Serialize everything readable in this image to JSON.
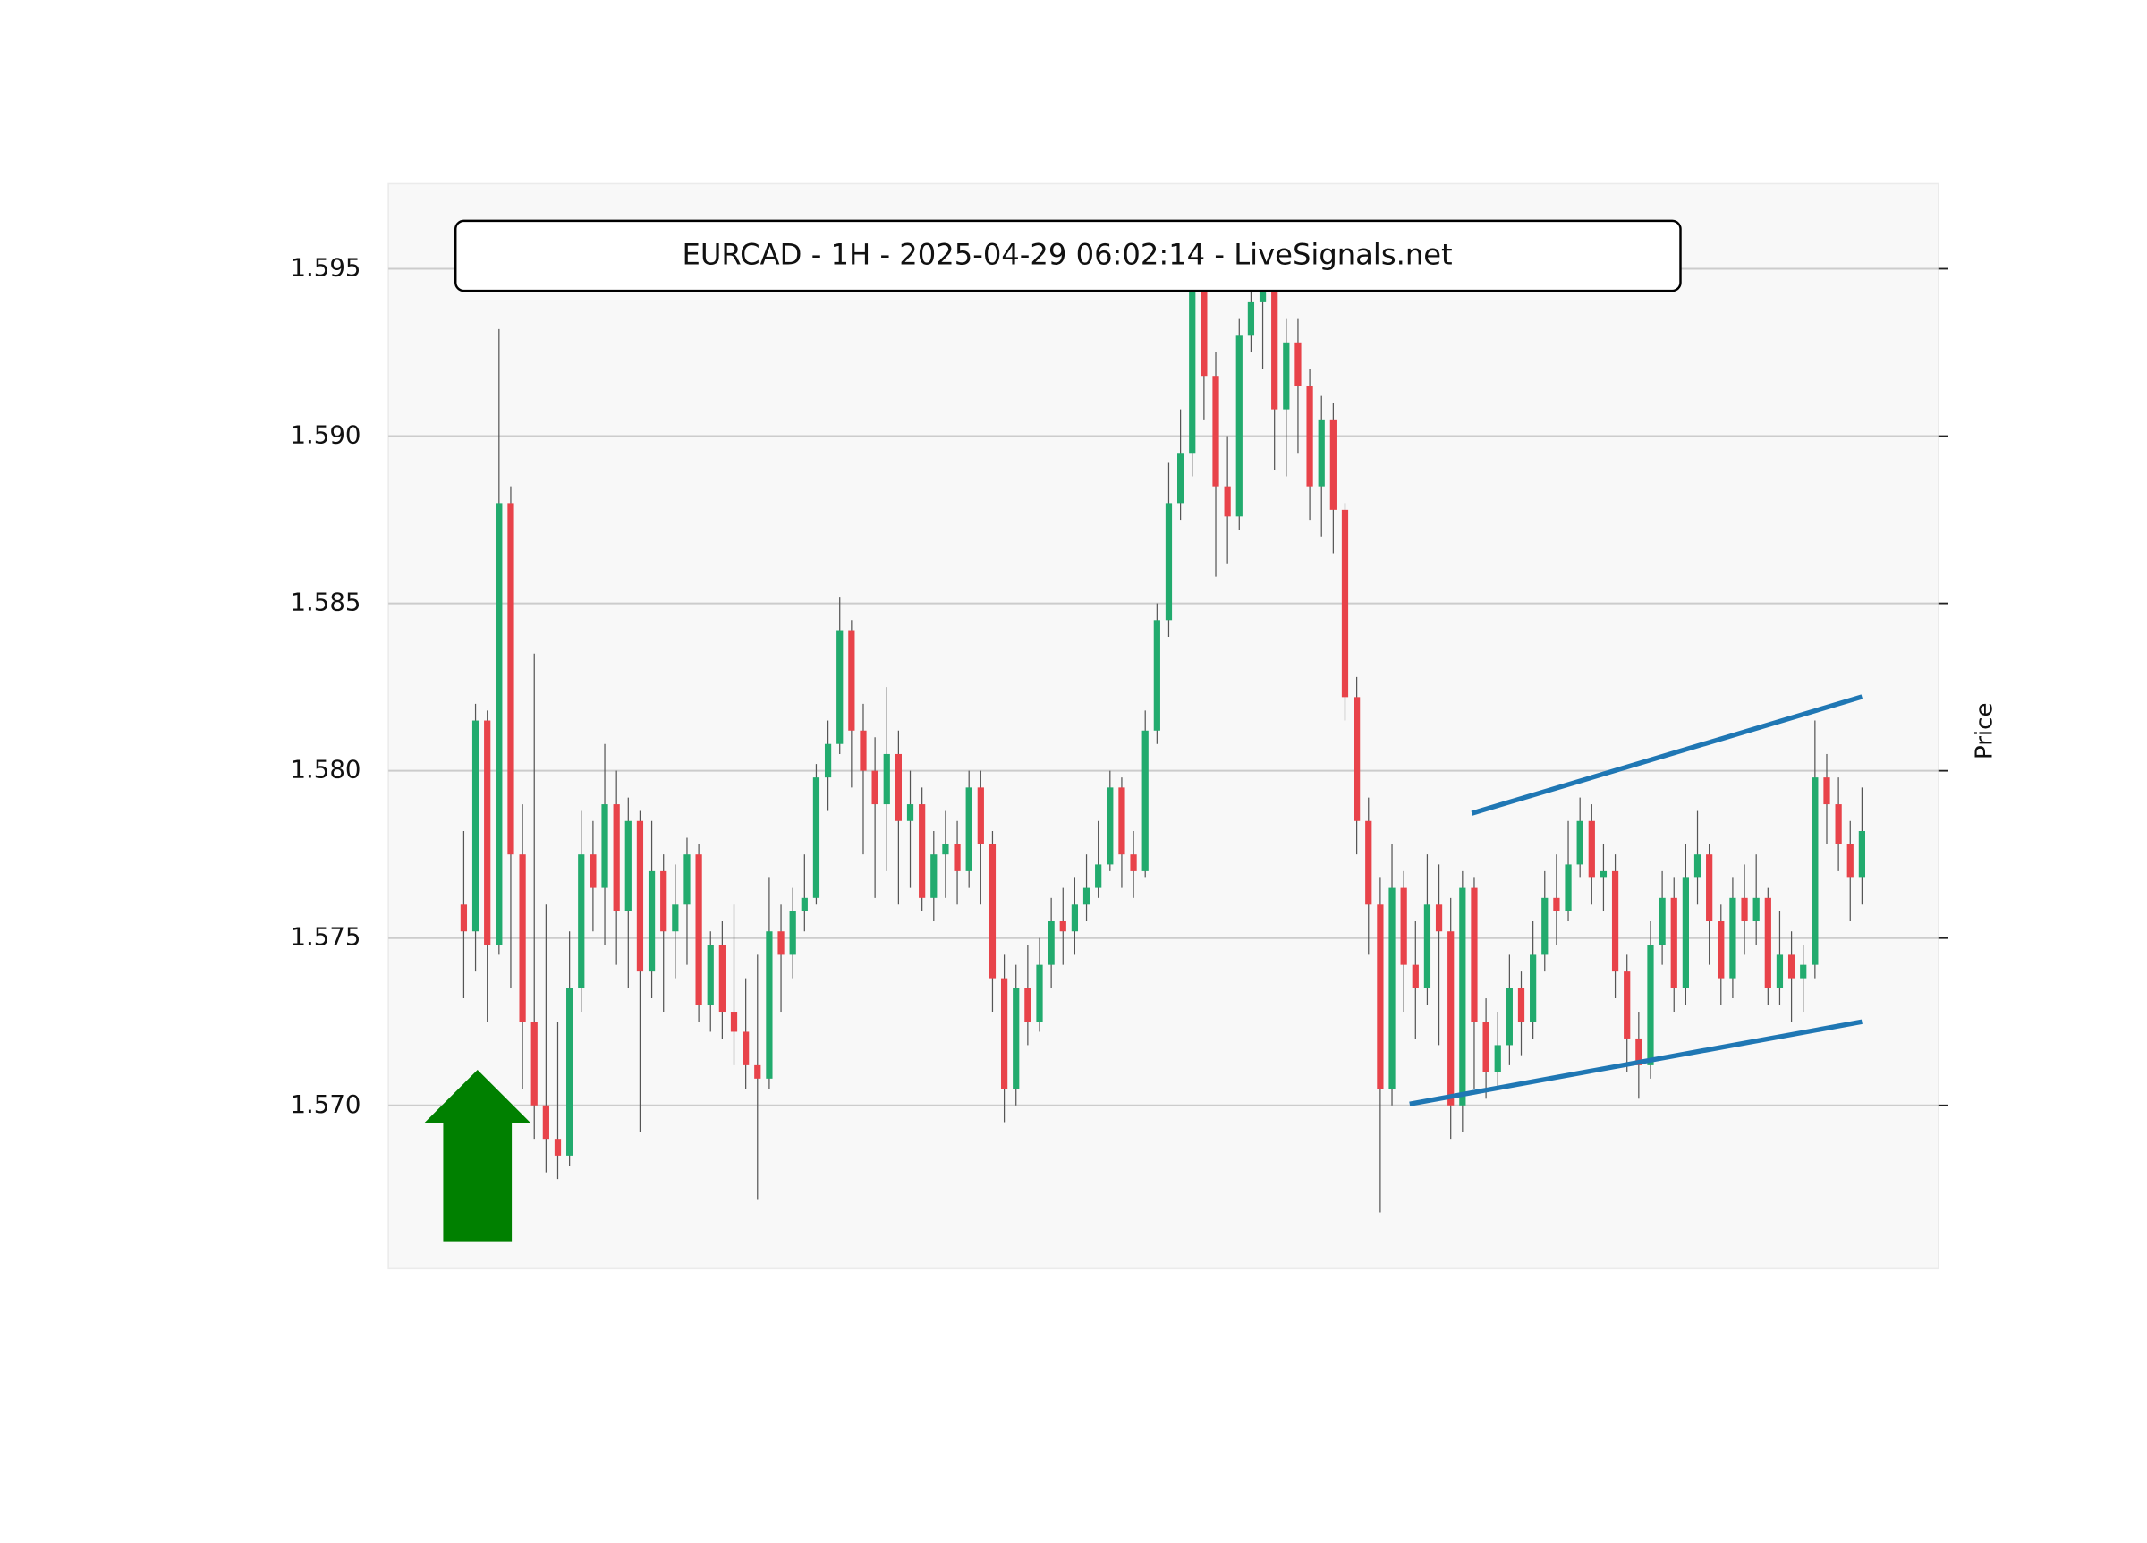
{
  "chart_data": {
    "type": "candlestick",
    "title": "EURCAD - 1H - 2025-04-29 06:02:14 - LiveSignals.net",
    "y_label": "Price",
    "up_color": "#22ab6e",
    "down_color": "#e8434a",
    "wick_color": "#555555",
    "ylim": [
      1.56512,
      1.59754
    ],
    "yticks": [
      {
        "value": 1.57,
        "label": "1.570"
      },
      1.575,
      {
        "value": 1.58,
        "label": "1.580"
      },
      1.585,
      {
        "value": 1.59,
        "label": "1.590"
      },
      1.595
    ],
    "grid": true,
    "xlim": [
      -6.42,
      125.5
    ],
    "open": [
      1.576,
      1.5752,
      1.5815,
      1.5748,
      1.588,
      1.5775,
      1.5725,
      1.57,
      1.569,
      1.5685,
      1.5735,
      1.5775,
      1.5765,
      1.579,
      1.5758,
      1.5785,
      1.574,
      1.577,
      1.5752,
      1.576,
      1.5775,
      1.573,
      1.5748,
      1.5728,
      1.5722,
      1.5712,
      1.5708,
      1.5752,
      1.5745,
      1.5758,
      1.5762,
      1.5798,
      1.5808,
      1.5842,
      1.5812,
      1.58,
      1.579,
      1.5805,
      1.5785,
      1.579,
      1.5762,
      1.5775,
      1.5778,
      1.577,
      1.5795,
      1.5778,
      1.5738,
      1.5705,
      1.5735,
      1.5725,
      1.5742,
      1.5755,
      1.5752,
      1.576,
      1.5765,
      1.5772,
      1.5795,
      1.5775,
      1.577,
      1.5812,
      1.5845,
      1.588,
      1.5895,
      1.5943,
      1.5918,
      1.5885,
      1.5876,
      1.593,
      1.594,
      1.5945,
      1.5908,
      1.5928,
      1.5915,
      1.5885,
      1.5905,
      1.5878,
      1.5822,
      1.5785,
      1.576,
      1.5705,
      1.5765,
      1.5742,
      1.5735,
      1.576,
      1.5752,
      1.57,
      1.5765,
      1.5725,
      1.571,
      1.5718,
      1.5735,
      1.5725,
      1.5745,
      1.5762,
      1.5758,
      1.5772,
      1.5785,
      1.5768,
      1.577,
      1.574,
      1.572,
      1.5712,
      1.5748,
      1.5762,
      1.5735,
      1.5768,
      1.5775,
      1.5755,
      1.5738,
      1.5762,
      1.5755,
      1.5762,
      1.5735,
      1.5745,
      1.5738,
      1.5742,
      1.5798,
      1.579,
      1.5778,
      1.5768
    ],
    "high": [
      1.5782,
      1.582,
      1.5818,
      1.5932,
      1.5885,
      1.579,
      1.5835,
      1.576,
      1.5725,
      1.5752,
      1.5788,
      1.5785,
      1.5808,
      1.58,
      1.5792,
      1.5788,
      1.5785,
      1.5775,
      1.5772,
      1.578,
      1.5778,
      1.5752,
      1.5755,
      1.576,
      1.5738,
      1.5745,
      1.5768,
      1.576,
      1.5765,
      1.5775,
      1.5802,
      1.5815,
      1.5852,
      1.5845,
      1.582,
      1.581,
      1.5825,
      1.5812,
      1.58,
      1.5795,
      1.5782,
      1.5788,
      1.5785,
      1.58,
      1.58,
      1.5782,
      1.5745,
      1.5742,
      1.5748,
      1.575,
      1.5762,
      1.5765,
      1.5768,
      1.5775,
      1.5785,
      1.58,
      1.5798,
      1.5782,
      1.5818,
      1.585,
      1.5892,
      1.5908,
      1.5952,
      1.5955,
      1.5925,
      1.59,
      1.5935,
      1.5952,
      1.5955,
      1.595,
      1.5935,
      1.5935,
      1.592,
      1.5912,
      1.591,
      1.588,
      1.5828,
      1.5792,
      1.5768,
      1.5778,
      1.577,
      1.5755,
      1.5775,
      1.5772,
      1.5762,
      1.577,
      1.5768,
      1.5732,
      1.5728,
      1.5745,
      1.574,
      1.5755,
      1.577,
      1.5775,
      1.5785,
      1.5792,
      1.579,
      1.5778,
      1.5775,
      1.5745,
      1.5728,
      1.5755,
      1.577,
      1.5768,
      1.5778,
      1.5788,
      1.5778,
      1.576,
      1.5768,
      1.5772,
      1.5775,
      1.5765,
      1.5758,
      1.5752,
      1.5748,
      1.5815,
      1.5805,
      1.5798,
      1.5785,
      1.5795
    ],
    "low": [
      1.5732,
      1.574,
      1.5725,
      1.5745,
      1.5735,
      1.5705,
      1.569,
      1.568,
      1.5678,
      1.5682,
      1.5728,
      1.5752,
      1.5748,
      1.5742,
      1.5735,
      1.5692,
      1.5732,
      1.5728,
      1.5738,
      1.5742,
      1.5725,
      1.5722,
      1.572,
      1.5712,
      1.5705,
      1.5672,
      1.5705,
      1.5728,
      1.5738,
      1.5752,
      1.576,
      1.5788,
      1.5805,
      1.5795,
      1.5775,
      1.5762,
      1.577,
      1.576,
      1.5765,
      1.5758,
      1.5755,
      1.5762,
      1.576,
      1.5765,
      1.576,
      1.5728,
      1.5695,
      1.57,
      1.5718,
      1.5722,
      1.5735,
      1.5742,
      1.5745,
      1.5755,
      1.5762,
      1.577,
      1.5765,
      1.5762,
      1.5768,
      1.5808,
      1.584,
      1.5875,
      1.5888,
      1.5905,
      1.5858,
      1.5862,
      1.5872,
      1.5925,
      1.592,
      1.589,
      1.5888,
      1.5895,
      1.5875,
      1.587,
      1.5865,
      1.5815,
      1.5775,
      1.5745,
      1.5668,
      1.57,
      1.5728,
      1.572,
      1.573,
      1.5718,
      1.569,
      1.5692,
      1.5705,
      1.5702,
      1.5705,
      1.5712,
      1.5715,
      1.572,
      1.574,
      1.5748,
      1.5755,
      1.5768,
      1.576,
      1.5758,
      1.5732,
      1.571,
      1.5702,
      1.5708,
      1.5742,
      1.5728,
      1.573,
      1.576,
      1.5742,
      1.573,
      1.5732,
      1.5745,
      1.5748,
      1.573,
      1.573,
      1.5725,
      1.5728,
      1.5738,
      1.5778,
      1.577,
      1.5755,
      1.576
    ],
    "close": [
      1.5752,
      1.5815,
      1.5748,
      1.588,
      1.5775,
      1.5725,
      1.57,
      1.569,
      1.5685,
      1.5735,
      1.5775,
      1.5765,
      1.579,
      1.5758,
      1.5785,
      1.574,
      1.577,
      1.5752,
      1.576,
      1.5775,
      1.573,
      1.5748,
      1.5728,
      1.5722,
      1.5712,
      1.5708,
      1.5752,
      1.5745,
      1.5758,
      1.5762,
      1.5798,
      1.5808,
      1.5842,
      1.5812,
      1.58,
      1.579,
      1.5805,
      1.5785,
      1.579,
      1.5762,
      1.5775,
      1.5778,
      1.577,
      1.5795,
      1.5778,
      1.5738,
      1.5705,
      1.5735,
      1.5725,
      1.5742,
      1.5755,
      1.5752,
      1.576,
      1.5765,
      1.5772,
      1.5795,
      1.5775,
      1.577,
      1.5812,
      1.5845,
      1.588,
      1.5895,
      1.5943,
      1.5918,
      1.5885,
      1.5876,
      1.593,
      1.594,
      1.5945,
      1.5908,
      1.5928,
      1.5915,
      1.5885,
      1.5905,
      1.5878,
      1.5822,
      1.5785,
      1.576,
      1.5705,
      1.5765,
      1.5742,
      1.5735,
      1.576,
      1.5752,
      1.57,
      1.5765,
      1.5725,
      1.571,
      1.5718,
      1.5735,
      1.5725,
      1.5745,
      1.5762,
      1.5758,
      1.5772,
      1.5785,
      1.5768,
      1.577,
      1.574,
      1.572,
      1.5712,
      1.5748,
      1.5762,
      1.5735,
      1.5768,
      1.5775,
      1.5755,
      1.5738,
      1.5762,
      1.5755,
      1.5762,
      1.5735,
      1.5745,
      1.5738,
      1.5742,
      1.5798,
      1.579,
      1.5778,
      1.5768,
      1.5782
    ],
    "trend_lines": [
      {
        "color": "#1f77b4",
        "x": [
          85.8,
          119
        ],
        "y": [
          1.57873,
          1.58221
        ]
      },
      {
        "color": "#1f77b4",
        "x": [
          80.5,
          119
        ],
        "y": [
          1.57004,
          1.5725
        ]
      }
    ]
  }
}
